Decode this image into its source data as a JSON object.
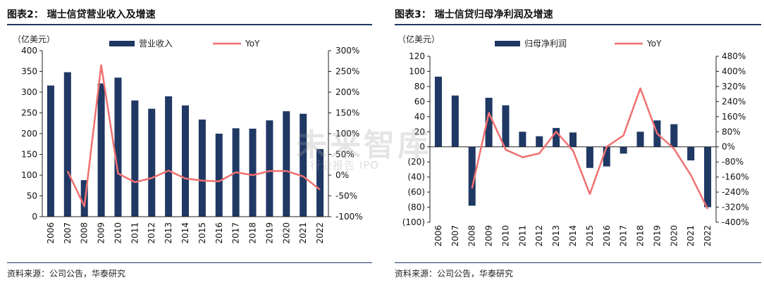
{
  "left": {
    "title": "图表2：  瑞士信贷营业收入及增速",
    "source": "资料来源：公司公告，华泰研究"
  },
  "right": {
    "title": "图表3：  瑞士信贷归母净利润及增速",
    "source": "资料来源：公司公告，华泰研究"
  },
  "watermark": {
    "main": "未来智库",
    "sub": "行业报告 IPO"
  },
  "colors": {
    "bar": "#1f3864",
    "line": "#f07070",
    "rule": "#1f3864"
  },
  "chart_data": [
    {
      "type": "bar",
      "categories": [
        "2006",
        "2007",
        "2008",
        "2009",
        "2010",
        "2011",
        "2012",
        "2013",
        "2014",
        "2015",
        "2016",
        "2017",
        "2018",
        "2019",
        "2020",
        "2021",
        "2022"
      ],
      "unit_label": "（亿美元）",
      "series": [
        {
          "name": "营业收入",
          "type": "bar",
          "axis": "left",
          "values": [
            316,
            348,
            88,
            321,
            335,
            280,
            260,
            290,
            268,
            234,
            200,
            213,
            212,
            232,
            254,
            248,
            163
          ]
        },
        {
          "name": "YoY",
          "type": "line",
          "axis": "right",
          "values": [
            null,
            10,
            -75,
            265,
            4,
            -17,
            -7,
            11,
            -8,
            -13,
            -15,
            7,
            0,
            10,
            10,
            -3,
            -35
          ]
        }
      ],
      "y_left": {
        "min": 0,
        "max": 400,
        "step": 50,
        "ticks": [
          "0",
          "50",
          "100",
          "150",
          "200",
          "250",
          "300",
          "350",
          "400"
        ]
      },
      "y_right": {
        "min": -100,
        "max": 300,
        "step": 50,
        "ticks": [
          "-100%",
          "-50%",
          "0%",
          "50%",
          "100%",
          "150%",
          "200%",
          "250%",
          "300%"
        ]
      }
    },
    {
      "type": "bar",
      "categories": [
        "2006",
        "2007",
        "2008",
        "2009",
        "2010",
        "2011",
        "2012",
        "2013",
        "2014",
        "2015",
        "2016",
        "2017",
        "2018",
        "2019",
        "2020",
        "2021",
        "2022"
      ],
      "unit_label": "（亿美元）",
      "series": [
        {
          "name": "归母净利润",
          "type": "bar",
          "axis": "left",
          "values": [
            93,
            68,
            -78,
            65,
            55,
            20,
            14,
            25,
            19,
            -28,
            -26,
            -9,
            20,
            35,
            30,
            -18,
            -80
          ]
        },
        {
          "name": "YoY",
          "type": "line",
          "axis": "right",
          "values": [
            null,
            null,
            -220,
            180,
            -15,
            -55,
            -35,
            80,
            -20,
            -250,
            0,
            60,
            310,
            70,
            -10,
            -150,
            -330
          ]
        }
      ],
      "y_left": {
        "min": -100,
        "max": 120,
        "step": 20,
        "ticks": [
          "(100)",
          "(80)",
          "(60)",
          "(40)",
          "(20)",
          "0",
          "20",
          "40",
          "60",
          "80",
          "100",
          "120"
        ]
      },
      "y_right": {
        "min": -400,
        "max": 480,
        "step": 80,
        "ticks": [
          "-400%",
          "-320%",
          "-240%",
          "-160%",
          "-80%",
          "0%",
          "80%",
          "160%",
          "240%",
          "320%",
          "400%",
          "480%"
        ]
      }
    }
  ]
}
